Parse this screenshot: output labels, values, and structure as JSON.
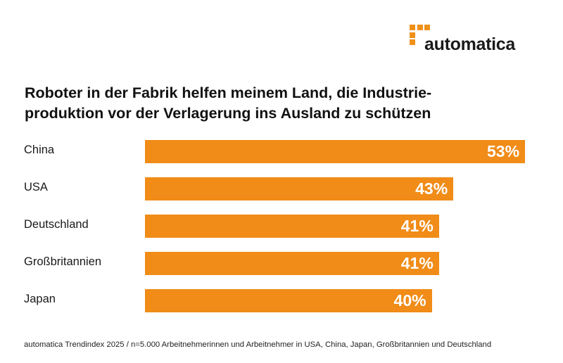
{
  "logo": {
    "text": "automatica",
    "color": "#f0901a"
  },
  "chart_data": {
    "type": "bar",
    "orientation": "horizontal",
    "title": "Roboter in der Fabrik helfen meinem Land, die Industrie-produktion vor der Verlagerung ins Ausland zu schützen",
    "title_lines": [
      "Roboter in der Fabrik helfen meinem Land, die Industrie-",
      "produktion vor der Verlagerung ins Ausland zu schützen"
    ],
    "categories": [
      "China",
      "USA",
      "Deutschland",
      "Großbritannien",
      "Japan"
    ],
    "values": [
      53,
      43,
      41,
      41,
      40
    ],
    "data_labels": [
      "53%",
      "43%",
      "41%",
      "41%",
      "40%"
    ],
    "unit": "%",
    "bar_color": "#f08c17",
    "grid": false,
    "xlabel": "",
    "ylabel": ""
  },
  "footnote": "automatica Trendindex 2025 / n=5.000 Arbeitnehmerinnen und Arbeitnehmer in USA, China, Japan, Großbritannien und Deutschland"
}
